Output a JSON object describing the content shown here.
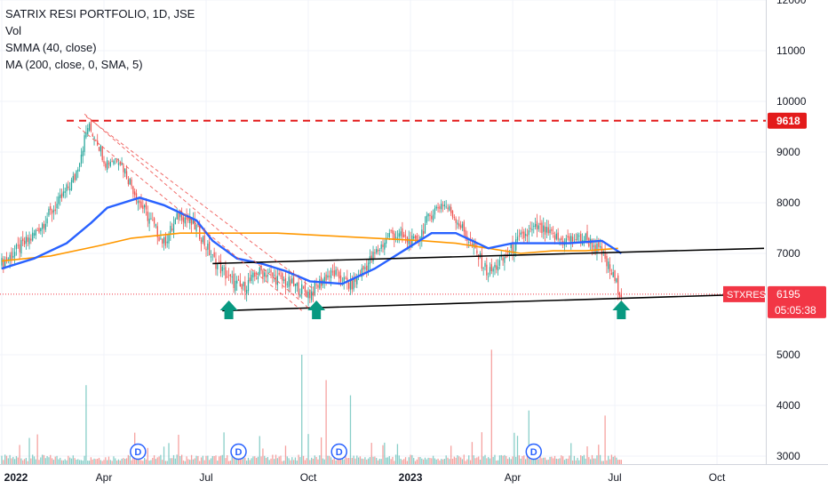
{
  "chart_data": {
    "type": "candlestick",
    "legend": [
      "SATRIX RESI PORTFOLIO, 1D, JSE",
      "Vol",
      "SMMA (40, close)",
      "MA (200, close, 0, SMA, 5)"
    ],
    "y_ticks": [
      "12000",
      "11000",
      "10000",
      "9000",
      "8000",
      "7000",
      "5000",
      "4000",
      "3000"
    ],
    "y_tick_values": [
      12000,
      11000,
      10000,
      9000,
      8000,
      7000,
      5000,
      4000,
      3000
    ],
    "x_ticks": [
      "2022",
      "Apr",
      "Jul",
      "Oct",
      "2023",
      "Apr",
      "Jul",
      "Oct"
    ],
    "x_tick_index": [
      0,
      63,
      126,
      189,
      252,
      315,
      378,
      441
    ],
    "ylim": [
      2850,
      12000
    ],
    "n_bars": 470,
    "last_bar_index": 382,
    "close_path": [
      [
        0,
        6800
      ],
      [
        18,
        7300
      ],
      [
        35,
        8000
      ],
      [
        45,
        8500
      ],
      [
        53,
        9500
      ],
      [
        58,
        9300
      ],
      [
        64,
        8800
      ],
      [
        72,
        8900
      ],
      [
        85,
        8000
      ],
      [
        100,
        7200
      ],
      [
        110,
        7800
      ],
      [
        120,
        7500
      ],
      [
        130,
        6900
      ],
      [
        140,
        6500
      ],
      [
        148,
        6300
      ],
      [
        160,
        6650
      ],
      [
        170,
        6500
      ],
      [
        178,
        6400
      ],
      [
        190,
        6200
      ],
      [
        200,
        6550
      ],
      [
        205,
        6600
      ],
      [
        215,
        6350
      ],
      [
        228,
        6900
      ],
      [
        240,
        7400
      ],
      [
        255,
        7200
      ],
      [
        265,
        7800
      ],
      [
        272,
        8000
      ],
      [
        280,
        7700
      ],
      [
        300,
        6600
      ],
      [
        310,
        6900
      ],
      [
        320,
        7300
      ],
      [
        330,
        7500
      ],
      [
        345,
        7250
      ],
      [
        360,
        7300
      ],
      [
        370,
        7000
      ],
      [
        382,
        6195
      ]
    ],
    "smma_path": [
      [
        0,
        6700
      ],
      [
        20,
        6900
      ],
      [
        40,
        7200
      ],
      [
        55,
        7600
      ],
      [
        65,
        7900
      ],
      [
        85,
        8100
      ],
      [
        100,
        7950
      ],
      [
        120,
        7650
      ],
      [
        130,
        7250
      ],
      [
        145,
        6900
      ],
      [
        160,
        6800
      ],
      [
        175,
        6650
      ],
      [
        190,
        6450
      ],
      [
        210,
        6400
      ],
      [
        230,
        6700
      ],
      [
        250,
        7100
      ],
      [
        265,
        7400
      ],
      [
        280,
        7400
      ],
      [
        300,
        7100
      ],
      [
        315,
        7200
      ],
      [
        335,
        7200
      ],
      [
        350,
        7200
      ],
      [
        370,
        7250
      ],
      [
        382,
        7000
      ]
    ],
    "ma_path": [
      [
        0,
        6850
      ],
      [
        30,
        6950
      ],
      [
        60,
        7150
      ],
      [
        80,
        7300
      ],
      [
        110,
        7400
      ],
      [
        140,
        7400
      ],
      [
        170,
        7400
      ],
      [
        200,
        7350
      ],
      [
        230,
        7300
      ],
      [
        260,
        7250
      ],
      [
        280,
        7200
      ],
      [
        300,
        7100
      ],
      [
        320,
        7000
      ],
      [
        340,
        7050
      ],
      [
        360,
        7050
      ],
      [
        380,
        7100
      ]
    ],
    "volume_spikes": [
      [
        52,
        4400
      ],
      [
        185,
        5000
      ],
      [
        200,
        4500
      ],
      [
        215,
        4200
      ],
      [
        302,
        5100
      ],
      [
        325,
        3900
      ],
      [
        372,
        3800
      ]
    ],
    "hline": {
      "value": 9618,
      "label": "9618",
      "from_index": 40,
      "color": "#e31b1b"
    },
    "trendlines": [
      {
        "points": [
          [
            130,
            6800
          ],
          [
            470,
            7100
          ]
        ]
      },
      {
        "points": [
          [
            136,
            5870
          ],
          [
            470,
            6200
          ]
        ]
      }
    ],
    "channel_lines": [
      {
        "points": [
          [
            51,
            9750
          ],
          [
            190,
            5900
          ]
        ]
      },
      {
        "points": [
          [
            47,
            9500
          ],
          [
            185,
            5870
          ]
        ]
      },
      {
        "points": [
          [
            52,
            9700
          ],
          [
            192,
            6300
          ]
        ]
      }
    ],
    "arrows": [
      140,
      194,
      382
    ],
    "dividends": [
      84,
      146,
      208,
      328
    ],
    "dividend_label": "D",
    "price_label": {
      "value": 6195,
      "symbol": "STXRES",
      "price": "6195",
      "countdown": "05:05:38",
      "color": "#f23645"
    },
    "colors": {
      "up": "#26a69a",
      "down": "#ef5350",
      "smma": "#2962ff",
      "ma": "#ff9800",
      "arrow": "#089981"
    }
  }
}
